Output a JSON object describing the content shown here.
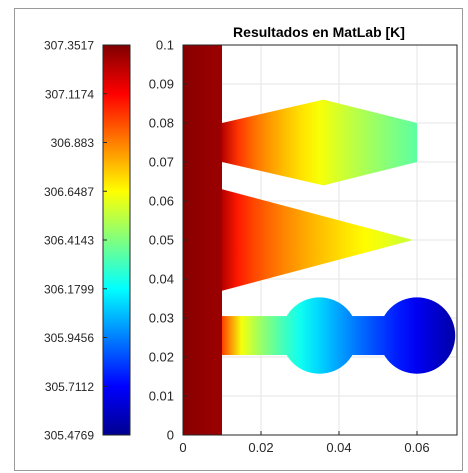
{
  "chart_data": {
    "type": "heatmap",
    "title": "Resultados en MatLab [K]",
    "colormap": "jet",
    "colorbar": {
      "position": "left",
      "ticks": [
        "307.3517",
        "307.1174",
        "306.883",
        "306.6487",
        "306.4143",
        "306.1799",
        "305.9456",
        "305.7112",
        "305.4769"
      ],
      "clim": [
        305.4769,
        307.3517
      ]
    },
    "x": {
      "ticks": [
        "0",
        "0.02",
        "0.04",
        "0.06"
      ],
      "tick_values": [
        0,
        0.02,
        0.04,
        0.06
      ],
      "xlim": [
        0,
        0.07
      ]
    },
    "y": {
      "ticks": [
        "0",
        "0.01",
        "0.02",
        "0.03",
        "0.04",
        "0.05",
        "0.06",
        "0.07",
        "0.08",
        "0.09",
        "0.1"
      ],
      "tick_values": [
        0,
        0.01,
        0.02,
        0.03,
        0.04,
        0.05,
        0.06,
        0.07,
        0.08,
        0.09,
        0.1
      ],
      "ylim": [
        0,
        0.1
      ]
    },
    "grid": true,
    "regions": [
      {
        "name": "base-plate",
        "shape": "rect",
        "x0": 0,
        "x1": 0.01,
        "y0": 0,
        "y1": 0.1,
        "t_left": 307.35,
        "t_right": 307.3
      },
      {
        "name": "upper-fin",
        "shape": "polygon",
        "points": [
          [
            0.01,
            0.08
          ],
          [
            0.036,
            0.086
          ],
          [
            0.06,
            0.08
          ],
          [
            0.06,
            0.07
          ],
          [
            0.036,
            0.064
          ],
          [
            0.01,
            0.07
          ]
        ],
        "t_left": 307.25,
        "t_right": 306.35
      },
      {
        "name": "middle-fin",
        "shape": "polygon",
        "points": [
          [
            0.01,
            0.063
          ],
          [
            0.059,
            0.05
          ],
          [
            0.01,
            0.037
          ]
        ],
        "t_left": 307.25,
        "t_right": 306.55
      },
      {
        "name": "lower-fin",
        "shape": "compound",
        "bar": {
          "x0": 0.01,
          "x1": 0.06,
          "y0": 0.0205,
          "y1": 0.0305
        },
        "circles": [
          {
            "cx": 0.035,
            "cy": 0.0255,
            "r": 0.0098
          },
          {
            "cx": 0.06,
            "cy": 0.0255,
            "r": 0.0098
          }
        ],
        "t_left": 307.0,
        "t_right": 305.55
      }
    ]
  }
}
